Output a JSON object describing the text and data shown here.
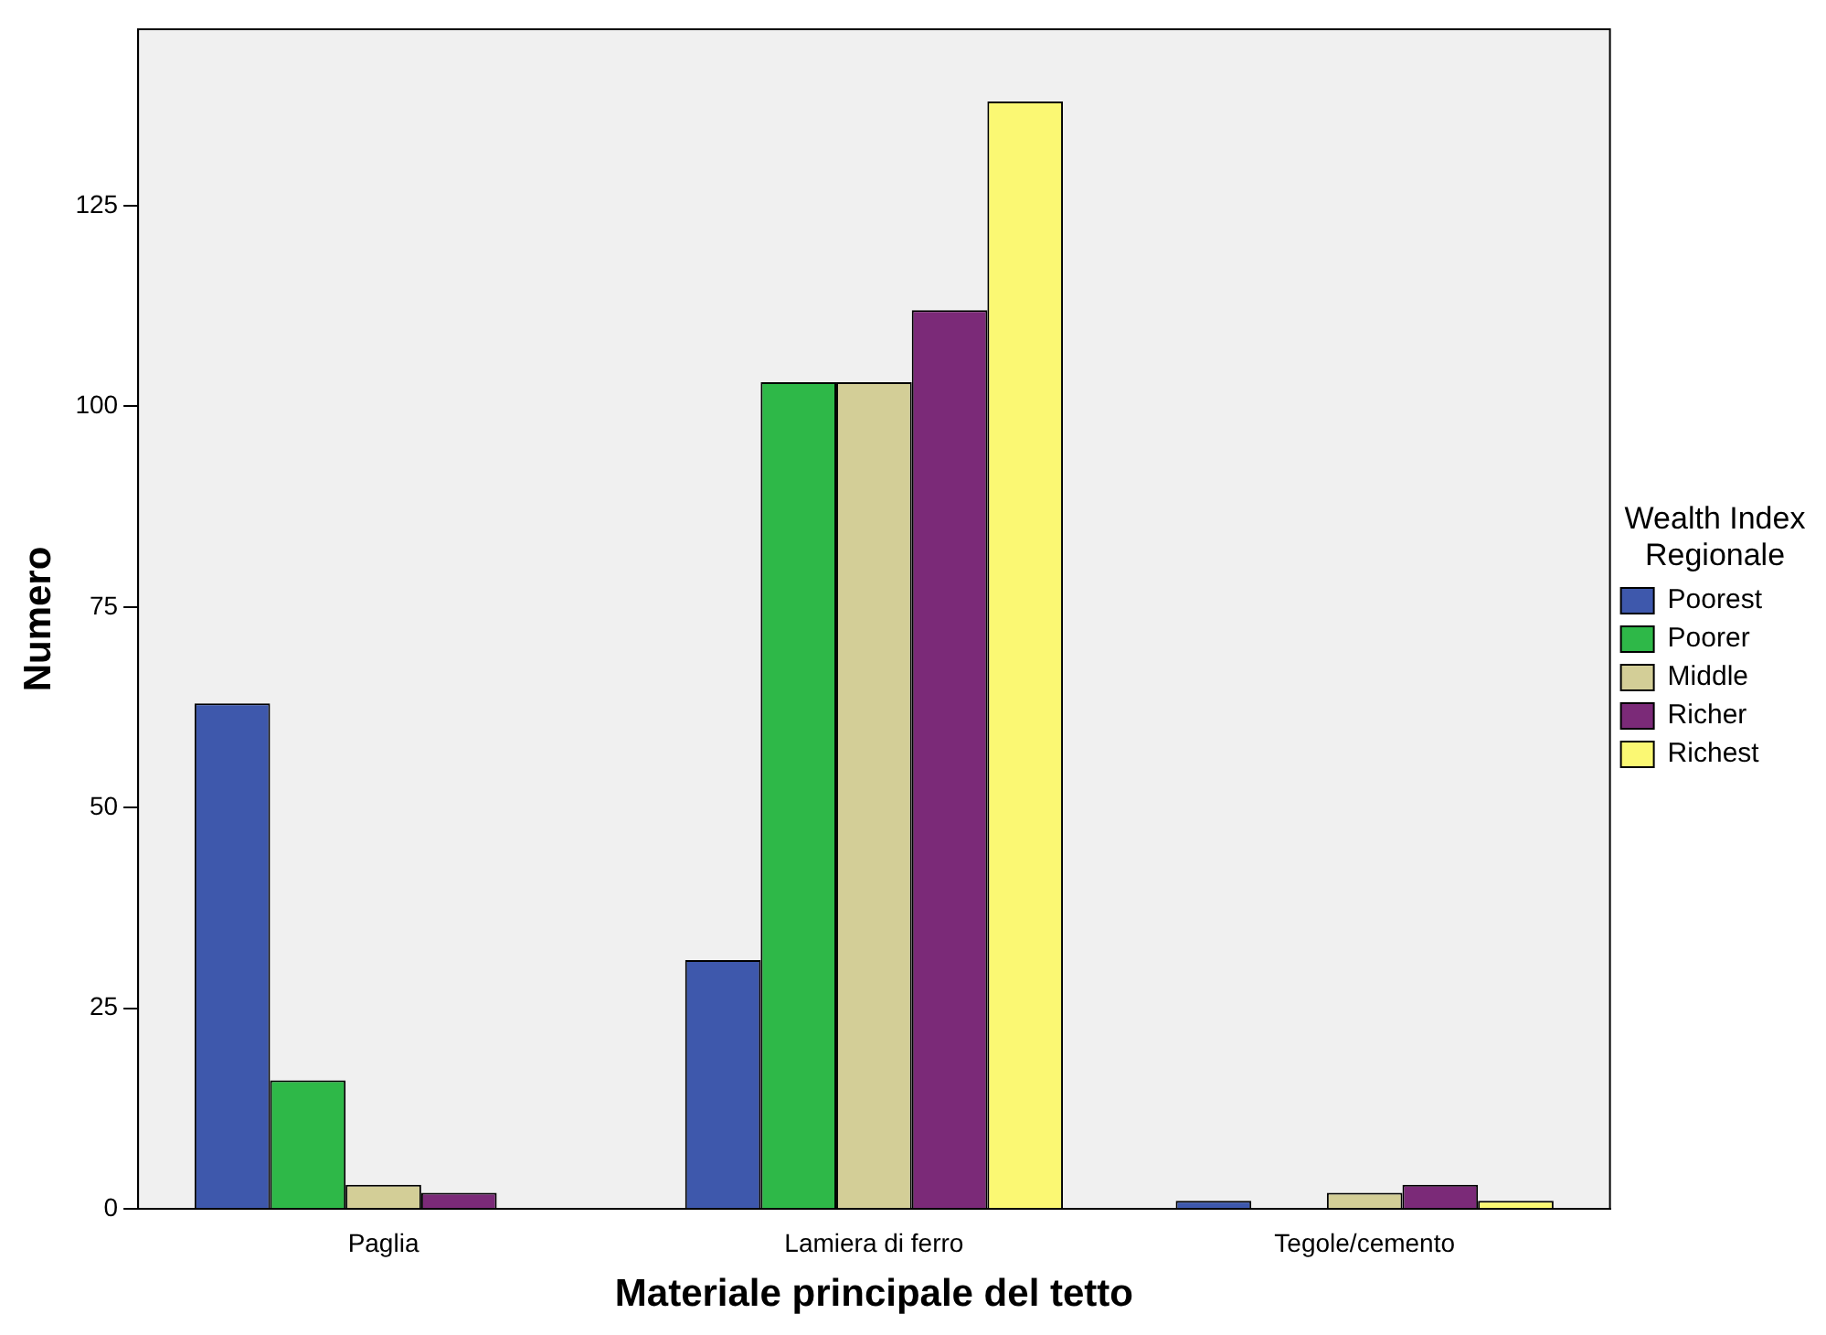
{
  "chart_data": {
    "type": "bar",
    "xlabel": "Materiale principale del tetto",
    "ylabel": "Numero",
    "legend_title": "Wealth Index Regionale",
    "categories": [
      "Paglia",
      "Lamiera di ferro",
      "Tegole/cemento"
    ],
    "series": [
      {
        "name": "Poorest",
        "color": "#3e58ac",
        "values": [
          63,
          31,
          1
        ]
      },
      {
        "name": "Poorer",
        "color": "#2eb848",
        "values": [
          16,
          103,
          null
        ]
      },
      {
        "name": "Middle",
        "color": "#d3ce97",
        "values": [
          3,
          103,
          2
        ]
      },
      {
        "name": "Richer",
        "color": "#7b2a78",
        "values": [
          2,
          112,
          3
        ]
      },
      {
        "name": "Richest",
        "color": "#fbf873",
        "values": [
          null,
          138,
          1
        ]
      }
    ],
    "ylim": [
      0,
      147
    ],
    "yticks": [
      0,
      25,
      50,
      75,
      100,
      125
    ],
    "grid": false,
    "legend": "right"
  }
}
